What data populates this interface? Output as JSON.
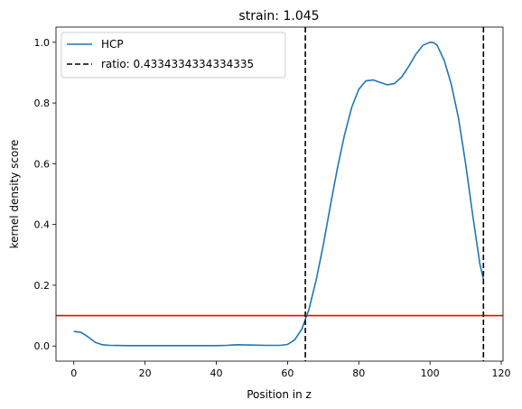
{
  "chart_data": {
    "type": "line",
    "title": "strain: 1.045",
    "xlabel": "Position in z",
    "ylabel": "kernel density score",
    "xlim": [
      -5,
      120.5
    ],
    "ylim": [
      -0.05,
      1.05
    ],
    "xticks": [
      0,
      20,
      40,
      60,
      80,
      100,
      120
    ],
    "yticks": [
      0.0,
      0.2,
      0.4,
      0.6,
      0.8,
      1.0
    ],
    "xtick_labels": [
      "0",
      "20",
      "40",
      "60",
      "80",
      "100",
      "120"
    ],
    "ytick_labels": [
      "0.0",
      "0.2",
      "0.4",
      "0.6",
      "0.8",
      "1.0"
    ],
    "grid": false,
    "legend_position": "top-left",
    "series": [
      {
        "name": "HCP",
        "color": "#1f77b4",
        "x": [
          0,
          2,
          4,
          6,
          8,
          10,
          15,
          20,
          25,
          30,
          35,
          40,
          43,
          46,
          50,
          54,
          58,
          60,
          62,
          64,
          66,
          68,
          70,
          72,
          74,
          76,
          78,
          80,
          82,
          84,
          86,
          88,
          90,
          92,
          94,
          96,
          98,
          100,
          101,
          102,
          104,
          106,
          108,
          110,
          112,
          114,
          115
        ],
        "y": [
          0.048,
          0.045,
          0.03,
          0.012,
          0.004,
          0.002,
          0.001,
          0.001,
          0.001,
          0.001,
          0.001,
          0.001,
          0.002,
          0.004,
          0.003,
          0.002,
          0.002,
          0.005,
          0.02,
          0.055,
          0.12,
          0.215,
          0.33,
          0.46,
          0.585,
          0.695,
          0.785,
          0.845,
          0.873,
          0.876,
          0.868,
          0.86,
          0.864,
          0.885,
          0.92,
          0.96,
          0.99,
          1.0,
          0.999,
          0.99,
          0.94,
          0.86,
          0.75,
          0.6,
          0.43,
          0.27,
          0.22
        ]
      }
    ],
    "vlines": [
      {
        "x": 65,
        "color": "#000000",
        "style": "dashed",
        "label": "ratio: 0.4334334334334335"
      },
      {
        "x": 115,
        "color": "#000000",
        "style": "dashed"
      }
    ],
    "hlines": [
      {
        "y": 0.1,
        "color": "#ff0000",
        "style": "solid"
      }
    ],
    "legend": [
      {
        "label": "HCP",
        "style": "solid",
        "color": "#1f77b4"
      },
      {
        "label": "ratio: 0.4334334334334335",
        "style": "dashed",
        "color": "#000000"
      }
    ]
  }
}
